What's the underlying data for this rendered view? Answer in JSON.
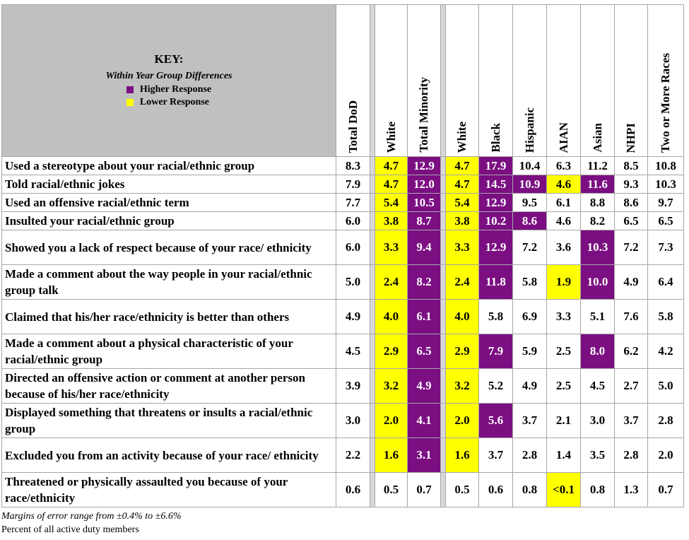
{
  "key": {
    "title": "KEY:",
    "subtitle": "Within Year Group Differences",
    "higher_label": "Higher Response",
    "lower_label": "Lower Response"
  },
  "colors": {
    "higher": "#7b0f82",
    "lower": "#ffff00"
  },
  "footnotes": {
    "margins": "Margins of error range from ±0.4% to ±6.6%",
    "percent": "Percent of all active duty members"
  },
  "chart_data": {
    "type": "table",
    "title": "",
    "columns": [
      "Total DoD",
      "White",
      "Total Minority",
      "White",
      "Black",
      "Hispanic",
      "AIAN",
      "Asian",
      "NHPI",
      "Two or More Races"
    ],
    "rows": [
      {
        "label": "Used a stereotype about your racial/ethnic group",
        "values": [
          "8.3",
          "4.7",
          "12.9",
          "4.7",
          "17.9",
          "10.4",
          "6.3",
          "11.2",
          "8.5",
          "10.8"
        ],
        "flags": [
          "",
          "lo",
          "hi",
          "lo",
          "hi",
          "",
          "",
          "",
          "",
          ""
        ]
      },
      {
        "label": "Told racial/ethnic jokes",
        "values": [
          "7.9",
          "4.7",
          "12.0",
          "4.7",
          "14.5",
          "10.9",
          "4.6",
          "11.6",
          "9.3",
          "10.3"
        ],
        "flags": [
          "",
          "lo",
          "hi",
          "lo",
          "hi",
          "hi",
          "lo",
          "hi",
          "",
          ""
        ]
      },
      {
        "label": "Used an offensive racial/ethnic term",
        "values": [
          "7.7",
          "5.4",
          "10.5",
          "5.4",
          "12.9",
          "9.5",
          "6.1",
          "8.8",
          "8.6",
          "9.7"
        ],
        "flags": [
          "",
          "lo",
          "hi",
          "lo",
          "hi",
          "",
          "",
          "",
          "",
          ""
        ]
      },
      {
        "label": "Insulted your racial/ethnic group",
        "values": [
          "6.0",
          "3.8",
          "8.7",
          "3.8",
          "10.2",
          "8.6",
          "4.6",
          "8.2",
          "6.5",
          "6.5"
        ],
        "flags": [
          "",
          "lo",
          "hi",
          "lo",
          "hi",
          "hi",
          "",
          "",
          "",
          ""
        ]
      },
      {
        "label": "Showed you a lack of respect because of your race/ ethnicity",
        "values": [
          "6.0",
          "3.3",
          "9.4",
          "3.3",
          "12.9",
          "7.2",
          "3.6",
          "10.3",
          "7.2",
          "7.3"
        ],
        "flags": [
          "",
          "lo",
          "hi",
          "lo",
          "hi",
          "",
          "",
          "hi",
          "",
          ""
        ]
      },
      {
        "label": "Made a comment about the way people in your racial/ethnic group talk",
        "values": [
          "5.0",
          "2.4",
          "8.2",
          "2.4",
          "11.8",
          "5.8",
          "1.9",
          "10.0",
          "4.9",
          "6.4"
        ],
        "flags": [
          "",
          "lo",
          "hi",
          "lo",
          "hi",
          "",
          "lo",
          "hi",
          "",
          ""
        ]
      },
      {
        "label": "Claimed that his/her race/ethnicity is better than others",
        "values": [
          "4.9",
          "4.0",
          "6.1",
          "4.0",
          "5.8",
          "6.9",
          "3.3",
          "5.1",
          "7.6",
          "5.8"
        ],
        "flags": [
          "",
          "lo",
          "hi",
          "lo",
          "",
          "",
          "",
          "",
          "",
          ""
        ]
      },
      {
        "label": "Made a comment about a physical characteristic of your racial/ethnic group",
        "values": [
          "4.5",
          "2.9",
          "6.5",
          "2.9",
          "7.9",
          "5.9",
          "2.5",
          "8.0",
          "6.2",
          "4.2"
        ],
        "flags": [
          "",
          "lo",
          "hi",
          "lo",
          "hi",
          "",
          "",
          "hi",
          "",
          ""
        ]
      },
      {
        "label": "Directed an offensive action or comment at another person because of his/her race/ethnicity",
        "values": [
          "3.9",
          "3.2",
          "4.9",
          "3.2",
          "5.2",
          "4.9",
          "2.5",
          "4.5",
          "2.7",
          "5.0"
        ],
        "flags": [
          "",
          "lo",
          "hi",
          "lo",
          "",
          "",
          "",
          "",
          "",
          ""
        ]
      },
      {
        "label": "Displayed something that threatens or insults a racial/ethnic group",
        "values": [
          "3.0",
          "2.0",
          "4.1",
          "2.0",
          "5.6",
          "3.7",
          "2.1",
          "3.0",
          "3.7",
          "2.8"
        ],
        "flags": [
          "",
          "lo",
          "hi",
          "lo",
          "hi",
          "",
          "",
          "",
          "",
          ""
        ]
      },
      {
        "label": "Excluded you from an activity because of your race/ ethnicity",
        "values": [
          "2.2",
          "1.6",
          "3.1",
          "1.6",
          "3.7",
          "2.8",
          "1.4",
          "3.5",
          "2.8",
          "2.0"
        ],
        "flags": [
          "",
          "lo",
          "hi",
          "lo",
          "",
          "",
          "",
          "",
          "",
          ""
        ]
      },
      {
        "label": "Threatened or physically assaulted you because of your race/ethnicity",
        "values": [
          "0.6",
          "0.5",
          "0.7",
          "0.5",
          "0.6",
          "0.8",
          "<0.1",
          "0.8",
          "1.3",
          "0.7"
        ],
        "flags": [
          "",
          "",
          "",
          "",
          "",
          "",
          "lo",
          "",
          "",
          ""
        ]
      }
    ]
  }
}
